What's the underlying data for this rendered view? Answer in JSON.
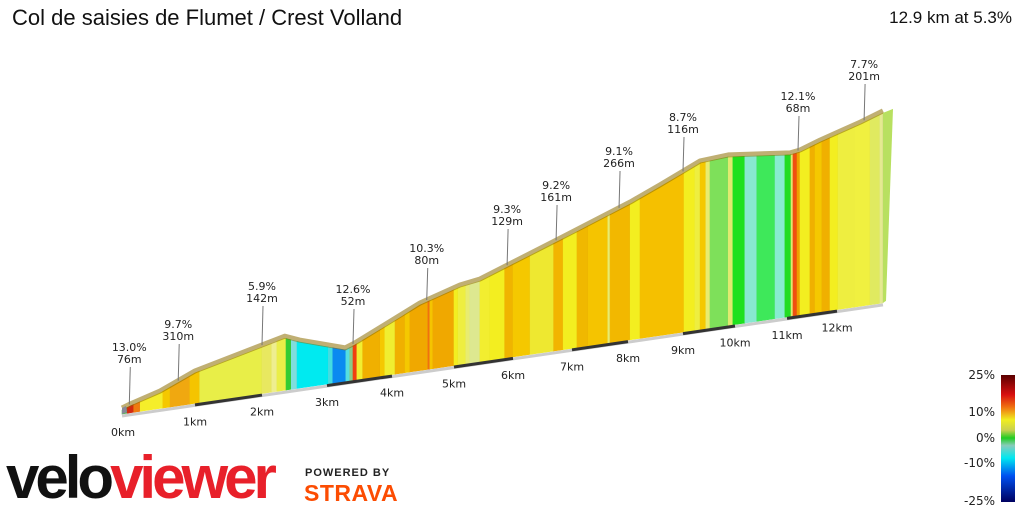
{
  "header": {
    "title": "Col de saisies de Flumet / Crest Volland",
    "summary": "12.9 km at 5.3%"
  },
  "branding": {
    "logo_velo": "velo",
    "logo_viewer": "viewer",
    "powered_by": "POWERED BY",
    "strava": "STRAVA",
    "strava_color": "#fc4c02",
    "viewer_color": "#e8202a"
  },
  "chart_data": {
    "type": "area",
    "title": "",
    "xlabel": "",
    "ylabel": "",
    "x_unit": "km",
    "x_ticks": [
      "0km",
      "1km",
      "2km",
      "3km",
      "4km",
      "5km",
      "6km",
      "7km",
      "8km",
      "9km",
      "10km",
      "11km",
      "12km"
    ],
    "distance_km": 12.9,
    "profile": {
      "km": [
        0,
        0.11,
        0.52,
        1.0,
        2.35,
        2.58,
        3.28,
        3.43,
        4.45,
        5.1,
        5.44,
        6.8,
        8.04,
        8.58,
        9.33,
        9.87,
        11.06,
        11.26,
        11.66,
        12.46,
        12.9
      ],
      "gain_m": [
        0,
        10,
        41,
        95,
        173,
        151,
        99,
        112,
        221,
        265,
        276,
        381,
        474,
        520,
        585,
        592,
        567,
        572,
        597,
        641,
        669
      ]
    },
    "segments": [
      {
        "to_km": 0.07,
        "color": "#5cb85c"
      },
      {
        "to_km": 0.16,
        "color": "#d42a10"
      },
      {
        "to_km": 0.25,
        "color": "#f07a10"
      },
      {
        "to_km": 0.56,
        "color": "#f5ee2a"
      },
      {
        "to_km": 0.66,
        "color": "#f5c800"
      },
      {
        "to_km": 0.93,
        "color": "#f0a810"
      },
      {
        "to_km": 1.07,
        "color": "#f5c400"
      },
      {
        "to_km": 2.0,
        "color": "#e8ee48"
      },
      {
        "to_km": 2.15,
        "color": "#e8e860"
      },
      {
        "to_km": 2.23,
        "color": "#eeee90"
      },
      {
        "to_km": 2.37,
        "color": "#eaee48"
      },
      {
        "to_km": 2.45,
        "color": "#33cc33"
      },
      {
        "to_km": 2.54,
        "color": "#80dddd"
      },
      {
        "to_km": 3.02,
        "color": "#00eaf0"
      },
      {
        "to_km": 3.09,
        "color": "#44dde0"
      },
      {
        "to_km": 3.29,
        "color": "#0a8af0"
      },
      {
        "to_km": 3.35,
        "color": "#55dde0"
      },
      {
        "to_km": 3.4,
        "color": "#88cc88"
      },
      {
        "to_km": 3.46,
        "color": "#f04010"
      },
      {
        "to_km": 3.55,
        "color": "#f2ee30"
      },
      {
        "to_km": 3.82,
        "color": "#f0b000"
      },
      {
        "to_km": 3.89,
        "color": "#f5c800"
      },
      {
        "to_km": 4.05,
        "color": "#f0ee30"
      },
      {
        "to_km": 4.21,
        "color": "#f0b000"
      },
      {
        "to_km": 4.29,
        "color": "#f5c800"
      },
      {
        "to_km": 4.58,
        "color": "#f0a800"
      },
      {
        "to_km": 4.61,
        "color": "#f07010"
      },
      {
        "to_km": 4.66,
        "color": "#f5c400"
      },
      {
        "to_km": 5.0,
        "color": "#f0a800"
      },
      {
        "to_km": 5.07,
        "color": "#f3ee20"
      },
      {
        "to_km": 5.2,
        "color": "#eeee40"
      },
      {
        "to_km": 5.27,
        "color": "#e8ec70"
      },
      {
        "to_km": 5.44,
        "color": "#dde890"
      },
      {
        "to_km": 5.61,
        "color": "#f2ee30"
      },
      {
        "to_km": 5.86,
        "color": "#f3ee20"
      },
      {
        "to_km": 6.0,
        "color": "#f0b400"
      },
      {
        "to_km": 6.29,
        "color": "#f5c800"
      },
      {
        "to_km": 6.69,
        "color": "#eee830"
      },
      {
        "to_km": 6.85,
        "color": "#f2b400"
      },
      {
        "to_km": 7.09,
        "color": "#f3ee20"
      },
      {
        "to_km": 7.29,
        "color": "#f0b800"
      },
      {
        "to_km": 7.64,
        "color": "#f5c400"
      },
      {
        "to_km": 7.68,
        "color": "#e8ec70"
      },
      {
        "to_km": 8.04,
        "color": "#f2b800"
      },
      {
        "to_km": 8.22,
        "color": "#f3ee20"
      },
      {
        "to_km": 9.02,
        "color": "#f5c000"
      },
      {
        "to_km": 9.23,
        "color": "#f3ee20"
      },
      {
        "to_km": 9.33,
        "color": "#eeee40"
      },
      {
        "to_km": 9.44,
        "color": "#f5c800"
      },
      {
        "to_km": 9.52,
        "color": "#e8ec70"
      },
      {
        "to_km": 9.87,
        "color": "#7ee05a"
      },
      {
        "to_km": 9.96,
        "color": "#e0ea70"
      },
      {
        "to_km": 10.19,
        "color": "#1ee01e"
      },
      {
        "to_km": 10.42,
        "color": "#88e8d0"
      },
      {
        "to_km": 10.77,
        "color": "#3ee85a"
      },
      {
        "to_km": 10.96,
        "color": "#88ecd0"
      },
      {
        "to_km": 11.08,
        "color": "#22dd22"
      },
      {
        "to_km": 11.12,
        "color": "#e0e870"
      },
      {
        "to_km": 11.2,
        "color": "#f05010"
      },
      {
        "to_km": 11.26,
        "color": "#f0a000"
      },
      {
        "to_km": 11.46,
        "color": "#f3ee20"
      },
      {
        "to_km": 11.56,
        "color": "#f0b000"
      },
      {
        "to_km": 11.7,
        "color": "#f5c800"
      },
      {
        "to_km": 11.86,
        "color": "#f0b000"
      },
      {
        "to_km": 12.02,
        "color": "#f3ee20"
      },
      {
        "to_km": 12.35,
        "color": "#eeee40"
      },
      {
        "to_km": 12.65,
        "color": "#f0f040"
      },
      {
        "to_km": 12.84,
        "color": "#e0ea60"
      },
      {
        "to_km": 12.9,
        "color": "#e4ea90"
      }
    ],
    "annotations": [
      {
        "km": 0.1,
        "gradient": "13.0%",
        "length": "76m"
      },
      {
        "km": 0.77,
        "gradient": "9.7%",
        "length": "310m"
      },
      {
        "km": 2.0,
        "gradient": "5.9%",
        "length": "142m"
      },
      {
        "km": 3.4,
        "gradient": "12.6%",
        "length": "52m"
      },
      {
        "km": 4.56,
        "gradient": "10.3%",
        "length": "80m"
      },
      {
        "km": 5.9,
        "gradient": "9.3%",
        "length": "129m"
      },
      {
        "km": 6.73,
        "gradient": "9.2%",
        "length": "161m"
      },
      {
        "km": 7.84,
        "gradient": "9.1%",
        "length": "266m"
      },
      {
        "km": 9.0,
        "gradient": "8.7%",
        "length": "116m"
      },
      {
        "km": 11.22,
        "gradient": "12.1%",
        "length": "68m"
      },
      {
        "km": 12.53,
        "gradient": "7.7%",
        "length": "201m"
      }
    ],
    "legend": {
      "labels": [
        "25%",
        "10%",
        "0%",
        "-10%",
        "-25%"
      ],
      "values": [
        25,
        10,
        0,
        -10,
        -25
      ],
      "colors": [
        {
          "v": 25,
          "c": "#5a0000"
        },
        {
          "v": 17,
          "c": "#d81010"
        },
        {
          "v": 12,
          "c": "#f07010"
        },
        {
          "v": 7,
          "c": "#f0ee20"
        },
        {
          "v": 3,
          "c": "#c8d050"
        },
        {
          "v": 0,
          "c": "#22cc22"
        },
        {
          "v": -3,
          "c": "#88ccbb"
        },
        {
          "v": -8,
          "c": "#00e8f0"
        },
        {
          "v": -15,
          "c": "#0050f0"
        },
        {
          "v": -25,
          "c": "#000060"
        }
      ]
    }
  }
}
